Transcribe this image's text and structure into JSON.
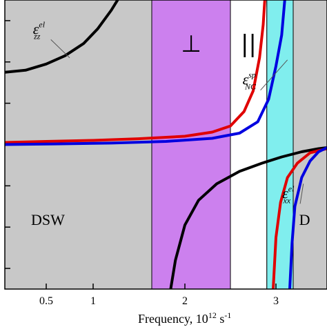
{
  "chart_data": {
    "type": "line",
    "title": "",
    "xlabel_base": "Frequency, 10",
    "xlabel_exp": "12",
    "xlabel_tail": " s",
    "xlabel_tail_exp": "-1",
    "xlim": [
      0.1,
      3.55
    ],
    "ylim": [
      -7,
      7
    ],
    "x_ticks": [
      {
        "value": 0.5,
        "label": "0.5"
      },
      {
        "value": 1,
        "label": "1"
      },
      {
        "value": 2,
        "label": "2"
      },
      {
        "value": 3,
        "label": "3"
      }
    ],
    "y_ticks": [
      -6,
      -4,
      -2,
      0,
      2,
      4,
      6
    ],
    "bands": [
      {
        "from": 0.1,
        "to": 1.65,
        "color": "#c8c8c8"
      },
      {
        "from": 1.65,
        "to": 2.5,
        "color": "#cc80ee",
        "label": "⊥"
      },
      {
        "from": 2.5,
        "to": 2.9,
        "color": "#ffffff",
        "label": "||"
      },
      {
        "from": 2.9,
        "to": 3.15,
        "color": "#80eeee"
      },
      {
        "from": 3.15,
        "to": 3.55,
        "color": "#c8c8c8"
      }
    ],
    "region_labels": [
      {
        "text": "DSW",
        "x": 0.5,
        "y": -3.9
      },
      {
        "text": "D",
        "x": 3.4,
        "y": -3.9
      }
    ],
    "series": [
      {
        "color": "#000000",
        "points": [
          [
            0.1,
            3.5
          ],
          [
            0.3,
            3.6
          ],
          [
            0.5,
            3.9
          ],
          [
            0.7,
            4.3
          ],
          [
            0.9,
            4.9
          ],
          [
            1.05,
            5.6
          ],
          [
            1.2,
            6.5
          ],
          [
            1.3,
            7.2
          ],
          [
            1.85,
            -7.0
          ],
          [
            1.9,
            -5.6
          ],
          [
            2.0,
            -3.9
          ],
          [
            2.15,
            -2.7
          ],
          [
            2.35,
            -1.9
          ],
          [
            2.6,
            -1.3
          ],
          [
            2.85,
            -0.9
          ],
          [
            3.05,
            -0.6
          ],
          [
            3.25,
            -0.35
          ],
          [
            3.45,
            -0.2
          ],
          [
            3.55,
            -0.15
          ]
        ]
      },
      {
        "color": "#e00000",
        "points": [
          [
            0.1,
            0.1
          ],
          [
            0.5,
            0.15
          ],
          [
            1.0,
            0.2
          ],
          [
            1.5,
            0.28
          ],
          [
            2.0,
            0.4
          ],
          [
            2.3,
            0.6
          ],
          [
            2.5,
            0.9
          ],
          [
            2.65,
            1.6
          ],
          [
            2.75,
            2.6
          ],
          [
            2.82,
            4.2
          ],
          [
            2.86,
            5.8
          ],
          [
            2.88,
            7.2
          ],
          [
            2.97,
            -7.0
          ],
          [
            3.0,
            -4.5
          ],
          [
            3.04,
            -2.8
          ],
          [
            3.1,
            -1.6
          ],
          [
            3.2,
            -0.9
          ],
          [
            3.35,
            -0.4
          ],
          [
            3.55,
            -0.2
          ]
        ]
      },
      {
        "color": "#0000e0",
        "points": [
          [
            0.1,
            0.0
          ],
          [
            0.6,
            0.03
          ],
          [
            1.2,
            0.07
          ],
          [
            1.8,
            0.15
          ],
          [
            2.3,
            0.3
          ],
          [
            2.6,
            0.55
          ],
          [
            2.8,
            1.1
          ],
          [
            2.92,
            2.2
          ],
          [
            3.0,
            3.8
          ],
          [
            3.05,
            5.3
          ],
          [
            3.08,
            7.2
          ],
          [
            3.12,
            -7.0
          ],
          [
            3.14,
            -4.8
          ],
          [
            3.17,
            -3.0
          ],
          [
            3.25,
            -1.6
          ],
          [
            3.35,
            -0.8
          ],
          [
            3.45,
            -0.35
          ],
          [
            3.55,
            -0.15
          ]
        ]
      }
    ],
    "annotations": [
      {
        "base": "ε",
        "sup": "el",
        "sub": "zz",
        "x": 0.52,
        "y": 5.35,
        "pointer": [
          0.75,
          4.2
        ]
      },
      {
        "base": "ε",
        "sup": "sp",
        "sub": "NC",
        "x": 2.8,
        "y": 2.9,
        "pointer": [
          3.1,
          4.1
        ]
      },
      {
        "base": "ε",
        "sup": "el",
        "sub": "xx",
        "x": 3.2,
        "y": -2.6,
        "pointer": [
          3.27,
          -1.9
        ]
      }
    ],
    "grid": false,
    "legend": "none"
  }
}
